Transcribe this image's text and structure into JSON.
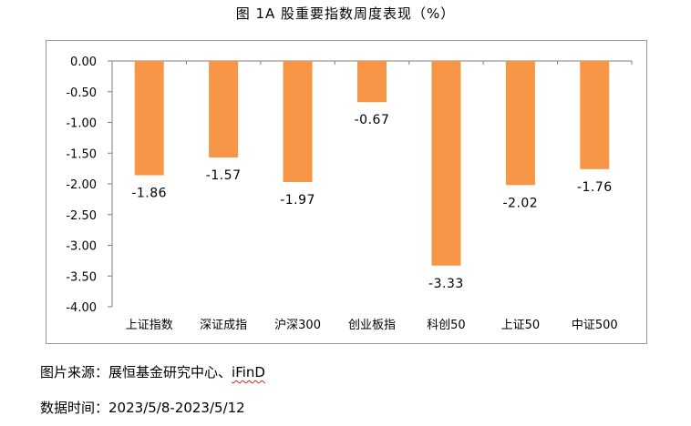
{
  "title": "图 1A 股重要指数周度表现（%）",
  "source": {
    "label": "图片来源：",
    "text": "展恒基金研究中心、",
    "brand": "iFinD"
  },
  "period": {
    "label": "数据时间：",
    "text": "2023/5/8-2023/5/12"
  },
  "colors": {
    "bar": "#F79646",
    "axis": "#7f7f7f"
  },
  "chart_data": {
    "type": "bar",
    "categories": [
      "上证指数",
      "深证成指",
      "沪深300",
      "创业板指",
      "科创50",
      "上证50",
      "中证500"
    ],
    "values": [
      -1.86,
      -1.57,
      -1.97,
      -0.67,
      -3.33,
      -2.02,
      -1.76
    ],
    "data_labels": [
      "-1.86",
      "-1.57",
      "-1.97",
      "-0.67",
      "-3.33",
      "-2.02",
      "-1.76"
    ],
    "ylim": [
      -4.0,
      0.0
    ],
    "yticks": [
      0.0,
      -0.5,
      -1.0,
      -1.5,
      -2.0,
      -2.5,
      -3.0,
      -3.5,
      -4.0
    ],
    "ytick_labels": [
      "0.00",
      "-0.50",
      "-1.00",
      "-1.50",
      "-2.00",
      "-2.50",
      "-3.00",
      "-3.50",
      "-4.00"
    ],
    "grid": false,
    "legend": "none"
  }
}
